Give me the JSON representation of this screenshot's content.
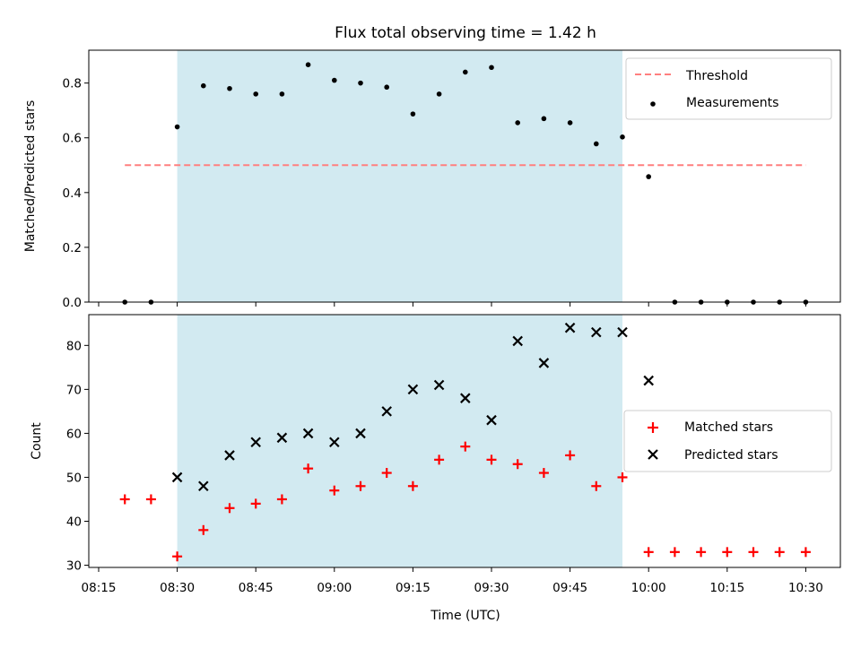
{
  "title": "Flux total observing time = 1.42 h",
  "colors": {
    "threshold": "#ff7f7f",
    "band": "#add8e6",
    "matched": "#ff0000",
    "predicted": "#000000",
    "measurement": "#000000"
  },
  "chart_data": [
    {
      "type": "scatter",
      "panel": "top",
      "ylabel": "Matched/Predicted stars",
      "ylim": [
        0,
        0.92
      ],
      "yticks": [
        0.0,
        0.2,
        0.4,
        0.6,
        0.8
      ],
      "ytick_labels": [
        "0.0",
        "0.2",
        "0.4",
        "0.6",
        "0.8"
      ],
      "shaded_region": [
        "08:30",
        "09:55"
      ],
      "threshold": {
        "y": 0.5,
        "x_start": "08:20",
        "x_end": "10:30",
        "style": "dashed"
      },
      "x": [
        "08:20",
        "08:25",
        "08:30",
        "08:35",
        "08:40",
        "08:45",
        "08:50",
        "08:55",
        "09:00",
        "09:05",
        "09:10",
        "09:15",
        "09:20",
        "09:25",
        "09:30",
        "09:35",
        "09:40",
        "09:45",
        "09:50",
        "09:55",
        "10:00",
        "10:05",
        "10:10",
        "10:15",
        "10:20",
        "10:25",
        "10:30"
      ],
      "series": [
        {
          "name": "Measurements",
          "marker": "dot",
          "values": [
            0.0,
            0.0,
            0.64,
            0.79,
            0.78,
            0.76,
            0.76,
            0.867,
            0.81,
            0.8,
            0.785,
            0.687,
            0.76,
            0.84,
            0.857,
            0.655,
            0.67,
            0.655,
            0.578,
            0.603,
            0.458,
            0.0,
            0.0,
            0.0,
            0.0,
            0.0,
            0.0
          ]
        }
      ],
      "legend": {
        "placement": "top-right",
        "entries": [
          "Threshold",
          "Measurements"
        ]
      }
    },
    {
      "type": "scatter",
      "panel": "bottom",
      "xlabel": "Time (UTC)",
      "ylabel": "Count",
      "ylim": [
        29.5,
        87
      ],
      "yticks": [
        30,
        40,
        50,
        60,
        70,
        80
      ],
      "ytick_labels": [
        "30",
        "40",
        "50",
        "60",
        "70",
        "80"
      ],
      "xlim": [
        "08:12",
        "10:36"
      ],
      "xtick_labels": [
        "08:15",
        "08:30",
        "08:45",
        "09:00",
        "09:15",
        "09:30",
        "09:45",
        "10:00",
        "10:15",
        "10:30"
      ],
      "shaded_region": [
        "08:30",
        "09:55"
      ],
      "series": [
        {
          "name": "Matched stars",
          "marker": "plus",
          "x": [
            "08:20",
            "08:25",
            "08:30",
            "08:35",
            "08:40",
            "08:45",
            "08:50",
            "08:55",
            "09:00",
            "09:05",
            "09:10",
            "09:15",
            "09:20",
            "09:25",
            "09:30",
            "09:35",
            "09:40",
            "09:45",
            "09:50",
            "09:55",
            "10:00",
            "10:05",
            "10:10",
            "10:15",
            "10:20",
            "10:25",
            "10:30"
          ],
          "values": [
            45,
            45,
            32,
            38,
            43,
            44,
            45,
            52,
            47,
            48,
            51,
            48,
            54,
            57,
            54,
            53,
            51,
            55,
            48,
            50,
            33,
            33,
            33,
            33,
            33,
            33,
            33
          ]
        },
        {
          "name": "Predicted stars",
          "marker": "x",
          "x": [
            "08:30",
            "08:35",
            "08:40",
            "08:45",
            "08:50",
            "08:55",
            "09:00",
            "09:05",
            "09:10",
            "09:15",
            "09:20",
            "09:25",
            "09:30",
            "09:35",
            "09:40",
            "09:45",
            "09:50",
            "09:55",
            "10:00"
          ],
          "values": [
            50,
            48,
            55,
            58,
            59,
            60,
            58,
            60,
            65,
            70,
            71,
            68,
            63,
            81,
            76,
            84,
            83,
            83,
            72
          ]
        }
      ],
      "legend": {
        "placement": "center-right",
        "entries": [
          "Matched stars",
          "Predicted stars"
        ]
      }
    }
  ]
}
